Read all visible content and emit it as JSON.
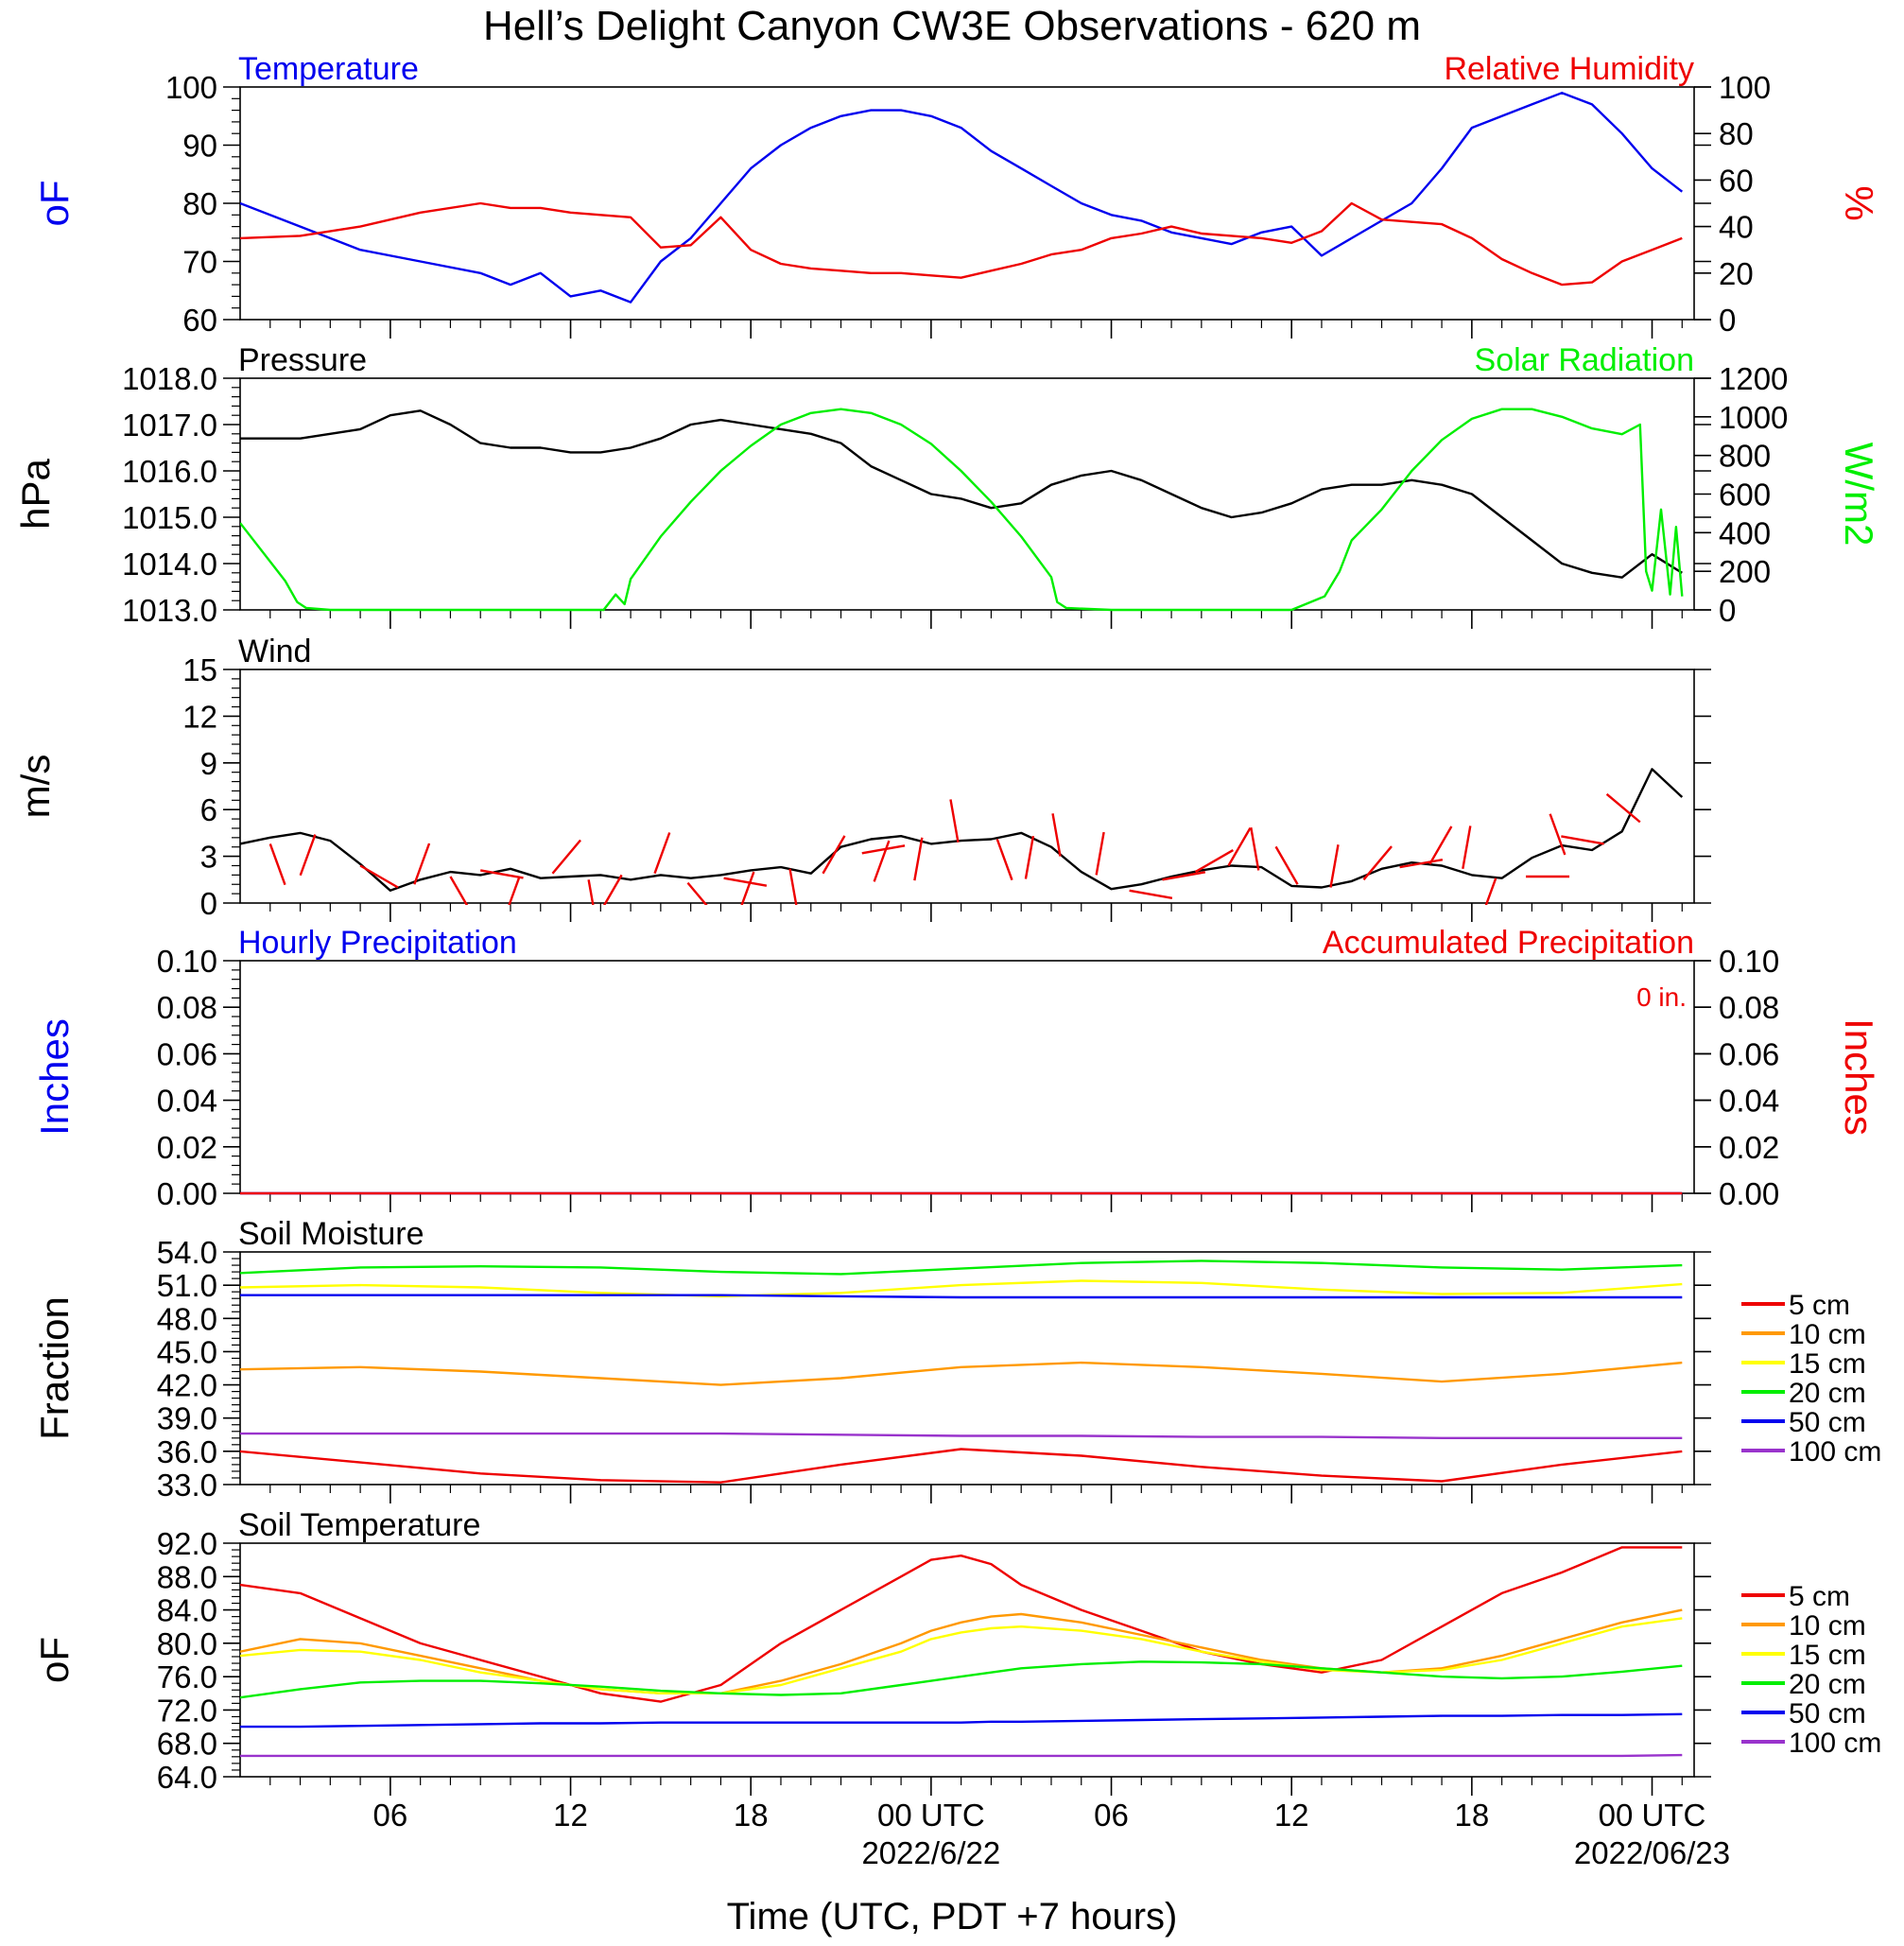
{
  "figure": {
    "title": "Hell’s Delight Canyon CW3E Observations - 620 m",
    "xlabel": "Time (UTC, PDT +7 hours)",
    "x_ticks": [
      "06",
      "12",
      "18",
      "00 UTC",
      "06",
      "12",
      "18",
      "00 UTC"
    ],
    "date_labels": [
      "2022/6/22",
      "2022/06/23"
    ]
  },
  "colors": {
    "blue": "#0000ee",
    "red": "#ee0000",
    "green": "#00ee00",
    "orange": "#ff9900",
    "yellow": "#ffff00",
    "purple": "#9933cc",
    "black": "#000000"
  },
  "chart_data": [
    {
      "type": "line",
      "left_title": "Temperature",
      "right_title": "Relative Humidity",
      "ylabel_left": "oF",
      "ylabel_right": "%",
      "ylim_left": [
        60,
        100
      ],
      "ylim_right": [
        0,
        100
      ],
      "yticks_left": [
        "100",
        "90",
        "80",
        "70",
        "60"
      ],
      "yticks_right": [
        "100",
        "80",
        "60",
        "40",
        "20",
        "0"
      ],
      "x_hours": [
        1,
        3,
        5,
        7,
        9,
        10,
        11,
        12,
        13,
        14,
        15,
        16,
        17,
        18,
        19,
        20,
        21,
        22,
        23,
        24,
        25,
        26,
        27,
        28,
        29,
        30,
        31,
        32,
        33,
        34,
        35,
        36,
        37,
        38,
        39,
        40,
        41,
        42,
        43,
        44,
        45,
        46,
        47,
        48,
        49
      ],
      "series": [
        {
          "name": "Temperature",
          "axis": "left",
          "color": "blue",
          "values": [
            80,
            76,
            72,
            70,
            68,
            66,
            68,
            64,
            65,
            63,
            70,
            74,
            80,
            86,
            90,
            93,
            95,
            96,
            96,
            95,
            93,
            89,
            86,
            83,
            80,
            78,
            77,
            75,
            74,
            73,
            75,
            76,
            71,
            74,
            77,
            80,
            86,
            93,
            95,
            97,
            99,
            97,
            92,
            86,
            82
          ]
        },
        {
          "name": "Relative Humidity",
          "axis": "right",
          "color": "red",
          "values": [
            35,
            36,
            40,
            46,
            50,
            48,
            48,
            46,
            45,
            44,
            31,
            32,
            44,
            30,
            24,
            22,
            21,
            20,
            20,
            19,
            18,
            21,
            24,
            28,
            30,
            35,
            37,
            40,
            37,
            36,
            35,
            33,
            38,
            50,
            43,
            42,
            41,
            35,
            26,
            20,
            15,
            16,
            25,
            30,
            35
          ]
        }
      ]
    },
    {
      "type": "line",
      "left_title": "Pressure",
      "right_title": "Solar Radiation",
      "ylabel_left": "hPa",
      "ylabel_right": "W/m2",
      "ylim_left": [
        1013,
        1018
      ],
      "ylim_right": [
        0,
        1200
      ],
      "yticks_left": [
        "1018.0",
        "1017.0",
        "1016.0",
        "1015.0",
        "1014.0",
        "1013.0"
      ],
      "yticks_right": [
        "1200",
        "1000",
        "800",
        "600",
        "400",
        "200",
        "0"
      ],
      "series": [
        {
          "name": "Pressure",
          "axis": "left",
          "color": "black",
          "x_hours": [
            1,
            3,
            5,
            6,
            7,
            8,
            9,
            10,
            11,
            12,
            13,
            14,
            15,
            16,
            17,
            18,
            19,
            20,
            21,
            22,
            23,
            24,
            25,
            26,
            27,
            28,
            29,
            30,
            31,
            32,
            33,
            34,
            35,
            36,
            37,
            38,
            39,
            40,
            41,
            42,
            43,
            44,
            45,
            46,
            47,
            48,
            49
          ],
          "values": [
            1016.7,
            1016.7,
            1016.9,
            1017.2,
            1017.3,
            1017.0,
            1016.6,
            1016.5,
            1016.5,
            1016.4,
            1016.4,
            1016.5,
            1016.7,
            1017.0,
            1017.1,
            1017.0,
            1016.9,
            1016.8,
            1016.6,
            1016.1,
            1015.8,
            1015.5,
            1015.4,
            1015.2,
            1015.3,
            1015.7,
            1015.9,
            1016.0,
            1015.8,
            1015.5,
            1015.2,
            1015.0,
            1015.1,
            1015.3,
            1015.6,
            1015.7,
            1015.7,
            1015.8,
            1015.7,
            1015.5,
            1015.0,
            1014.5,
            1014.0,
            1013.8,
            1013.7,
            1014.2,
            1013.8
          ]
        },
        {
          "name": "Solar Radiation",
          "axis": "right",
          "color": "green",
          "x_hours": [
            1,
            2.5,
            2.9,
            3.2,
            4,
            8,
            12,
            13.1,
            13.5,
            13.8,
            14,
            15,
            16,
            17,
            18,
            19,
            20,
            21,
            22,
            23,
            24,
            25,
            26,
            27,
            28,
            28.2,
            28.5,
            30,
            32,
            36,
            37.1,
            37.6,
            38,
            39,
            40,
            41,
            42,
            43,
            44,
            45,
            46,
            47,
            47.6,
            47.8,
            48,
            48.3,
            48.6,
            48.8,
            49
          ],
          "values": [
            450,
            150,
            40,
            10,
            0,
            0,
            0,
            0,
            80,
            30,
            160,
            380,
            560,
            720,
            850,
            960,
            1020,
            1040,
            1020,
            960,
            860,
            720,
            560,
            380,
            170,
            40,
            10,
            0,
            0,
            0,
            70,
            200,
            360,
            520,
            720,
            880,
            990,
            1040,
            1040,
            1000,
            940,
            910,
            960,
            200,
            100,
            520,
            80,
            430,
            70
          ]
        }
      ]
    },
    {
      "type": "line",
      "left_title": "Wind",
      "ylabel_left": "m/s",
      "ylim_left": [
        0,
        15
      ],
      "yticks_left": [
        "15",
        "12",
        "9",
        "6",
        "3",
        "0"
      ],
      "x_hours": [
        1,
        2,
        3,
        4,
        5,
        6,
        7,
        8,
        9,
        10,
        11,
        12,
        13,
        14,
        15,
        16,
        17,
        18,
        19,
        20,
        21,
        22,
        23,
        24,
        25,
        26,
        27,
        28,
        29,
        30,
        31,
        32,
        33,
        34,
        35,
        36,
        37,
        38,
        39,
        40,
        41,
        42,
        43,
        44,
        45,
        46,
        47,
        48,
        49
      ],
      "series": [
        {
          "name": "Wind speed",
          "color": "black",
          "values": [
            3.8,
            4.2,
            4.5,
            4.0,
            2.5,
            0.8,
            1.5,
            2.0,
            1.8,
            2.2,
            1.6,
            1.7,
            1.8,
            1.5,
            1.8,
            1.6,
            1.8,
            2.1,
            2.3,
            1.9,
            3.6,
            4.1,
            4.3,
            3.8,
            4.0,
            4.1,
            4.5,
            3.6,
            2.0,
            0.9,
            1.2,
            1.7,
            2.1,
            2.4,
            2.3,
            1.1,
            1.0,
            1.4,
            2.2,
            2.6,
            2.4,
            1.8,
            1.6,
            2.9,
            3.7,
            3.4,
            4.6,
            8.6,
            6.8
          ]
        },
        {
          "name": "Wind direction",
          "color": "red",
          "barb_x_hours": [
            2,
            3.5,
            5,
            6.8,
            8,
            9,
            10.3,
            11.4,
            12.6,
            13.7,
            14.8,
            15.9,
            17.1,
            18.1,
            19.3,
            20.4,
            21.7,
            22.6,
            23.7,
            24.9,
            26.2,
            27.4,
            28.3,
            29.5,
            30.6,
            31.7,
            32.8,
            33.9,
            34.9,
            36.2,
            37.3,
            38.4,
            39.6,
            40.6,
            41.7,
            42.8,
            43.8,
            45.1,
            46.4,
            47.6
          ],
          "barb_speeds": [
            3.8,
            4.4,
            2.4,
            1.2,
            1.7,
            2.1,
            1.7,
            1.9,
            1.5,
            1.8,
            1.9,
            1.3,
            1.6,
            2.0,
            2.2,
            1.9,
            3.2,
            4.0,
            4.2,
            3.9,
            4.1,
            4.3,
            3.0,
            1.8,
            0.8,
            1.5,
            2.0,
            2.4,
            2.1,
            1.2,
            1.0,
            1.5,
            2.3,
            2.5,
            2.2,
            1.6,
            1.7,
            3.1,
            3.8,
            5.2
          ],
          "barb_angles_deg": [
            160,
            200,
            120,
            20,
            150,
            100,
            200,
            40,
            170,
            210,
            20,
            140,
            100,
            200,
            170,
            30,
            80,
            200,
            190,
            350,
            160,
            190,
            350,
            10,
            100,
            80,
            60,
            30,
            350,
            330,
            10,
            40,
            80,
            30,
            10,
            200,
            90,
            340,
            280,
            310
          ]
        }
      ]
    },
    {
      "type": "line",
      "left_title": "Hourly Precipitation",
      "right_title": "Accumulated Precipitation",
      "annotation": "0 in.",
      "ylabel_left": "Inches",
      "ylabel_right": "Inches",
      "ylim_left": [
        0,
        0.1
      ],
      "ylim_right": [
        0,
        0.1
      ],
      "yticks_left": [
        "0.10",
        "0.08",
        "0.06",
        "0.04",
        "0.02",
        "0.00"
      ],
      "yticks_right": [
        "0.10",
        "0.08",
        "0.06",
        "0.04",
        "0.02",
        "0.00"
      ],
      "x_hours": [
        1,
        49
      ],
      "series": [
        {
          "name": "Hourly Precipitation",
          "axis": "left",
          "color": "blue",
          "values": [
            0,
            0
          ]
        },
        {
          "name": "Accumulated Precipitation",
          "axis": "right",
          "color": "red",
          "values": [
            0,
            0
          ]
        }
      ]
    },
    {
      "type": "line",
      "left_title": "Soil Moisture",
      "ylabel_left": "Fraction",
      "ylim_left": [
        33,
        54
      ],
      "yticks_left": [
        "54.0",
        "51.0",
        "48.0",
        "45.0",
        "42.0",
        "39.0",
        "36.0",
        "33.0"
      ],
      "x_hours": [
        1,
        5,
        9,
        13,
        17,
        21,
        25,
        29,
        33,
        37,
        41,
        45,
        49
      ],
      "legend": [
        "5 cm",
        "10 cm",
        "15 cm",
        "20 cm",
        "50 cm",
        "100 cm"
      ],
      "series": [
        {
          "name": "5 cm",
          "color": "red",
          "values": [
            36.0,
            35.0,
            34.0,
            33.4,
            33.2,
            34.8,
            36.2,
            35.6,
            34.6,
            33.8,
            33.3,
            34.8,
            36.0
          ]
        },
        {
          "name": "10 cm",
          "color": "orange",
          "values": [
            43.4,
            43.6,
            43.2,
            42.6,
            42.0,
            42.6,
            43.6,
            44.0,
            43.6,
            43.0,
            42.3,
            43.0,
            44.0
          ]
        },
        {
          "name": "15 cm",
          "color": "yellow",
          "values": [
            50.8,
            51.0,
            50.8,
            50.3,
            50.0,
            50.3,
            51.0,
            51.4,
            51.2,
            50.6,
            50.2,
            50.3,
            51.1
          ]
        },
        {
          "name": "20 cm",
          "color": "green",
          "values": [
            52.1,
            52.6,
            52.7,
            52.6,
            52.2,
            52.0,
            52.5,
            53.0,
            53.2,
            53.0,
            52.6,
            52.4,
            52.8
          ]
        },
        {
          "name": "50 cm",
          "color": "blue",
          "values": [
            50.1,
            50.1,
            50.1,
            50.1,
            50.1,
            50.0,
            49.9,
            49.9,
            49.9,
            49.9,
            49.9,
            49.9,
            49.9
          ]
        },
        {
          "name": "100 cm",
          "color": "purple",
          "values": [
            37.6,
            37.6,
            37.6,
            37.6,
            37.6,
            37.5,
            37.4,
            37.4,
            37.3,
            37.3,
            37.2,
            37.2,
            37.2
          ]
        }
      ]
    },
    {
      "type": "line",
      "left_title": "Soil Temperature",
      "ylabel_left": "oF",
      "ylim_left": [
        64,
        92
      ],
      "yticks_left": [
        "92.0",
        "88.0",
        "84.0",
        "80.0",
        "76.0",
        "72.0",
        "68.0",
        "64.0"
      ],
      "x_hours": [
        1,
        3,
        5,
        7,
        9,
        11,
        13,
        15,
        17,
        19,
        21,
        23,
        24,
        25,
        26,
        27,
        29,
        31,
        33,
        35,
        37,
        39,
        41,
        43,
        45,
        47,
        49
      ],
      "legend": [
        "5 cm",
        "10 cm",
        "15 cm",
        "20 cm",
        "50 cm",
        "100 cm"
      ],
      "series": [
        {
          "name": "5 cm",
          "color": "red",
          "values": [
            87.0,
            86.0,
            83.0,
            80.0,
            78.0,
            76.0,
            74.0,
            73.0,
            75.0,
            80.0,
            84.0,
            88.0,
            90.0,
            90.5,
            89.5,
            87.0,
            84.0,
            81.5,
            79.0,
            77.5,
            76.5,
            78.0,
            82.0,
            86.0,
            88.5,
            91.5,
            91.5
          ]
        },
        {
          "name": "10 cm",
          "color": "orange",
          "values": [
            79.0,
            80.5,
            80.0,
            78.5,
            77.0,
            75.5,
            74.5,
            74.0,
            74.0,
            75.5,
            77.5,
            80.0,
            81.5,
            82.5,
            83.2,
            83.5,
            82.5,
            81.0,
            79.5,
            78.0,
            77.0,
            76.5,
            77.0,
            78.5,
            80.5,
            82.5,
            84.0
          ]
        },
        {
          "name": "15 cm",
          "color": "yellow",
          "values": [
            78.5,
            79.2,
            79.0,
            78.0,
            76.5,
            75.5,
            74.5,
            74.0,
            74.0,
            75.0,
            77.0,
            79.0,
            80.5,
            81.3,
            81.8,
            82.0,
            81.5,
            80.5,
            79.0,
            77.8,
            76.8,
            76.5,
            76.8,
            78.0,
            80.0,
            82.0,
            83.0
          ]
        },
        {
          "name": "20 cm",
          "color": "green",
          "values": [
            73.5,
            74.5,
            75.3,
            75.5,
            75.5,
            75.2,
            74.8,
            74.3,
            74.0,
            73.8,
            74.0,
            75.0,
            75.5,
            76.0,
            76.5,
            77.0,
            77.5,
            77.8,
            77.7,
            77.5,
            77.0,
            76.5,
            76.0,
            75.8,
            76.0,
            76.6,
            77.3
          ]
        },
        {
          "name": "50 cm",
          "color": "blue",
          "values": [
            70.0,
            70.0,
            70.1,
            70.2,
            70.3,
            70.4,
            70.4,
            70.5,
            70.5,
            70.5,
            70.5,
            70.5,
            70.5,
            70.5,
            70.6,
            70.6,
            70.7,
            70.8,
            70.9,
            71.0,
            71.1,
            71.2,
            71.3,
            71.3,
            71.4,
            71.4,
            71.5
          ]
        },
        {
          "name": "100 cm",
          "color": "purple",
          "values": [
            66.5,
            66.5,
            66.5,
            66.5,
            66.5,
            66.5,
            66.5,
            66.5,
            66.5,
            66.5,
            66.5,
            66.5,
            66.5,
            66.5,
            66.5,
            66.5,
            66.5,
            66.5,
            66.5,
            66.5,
            66.5,
            66.5,
            66.5,
            66.5,
            66.5,
            66.5,
            66.6
          ]
        }
      ]
    }
  ]
}
